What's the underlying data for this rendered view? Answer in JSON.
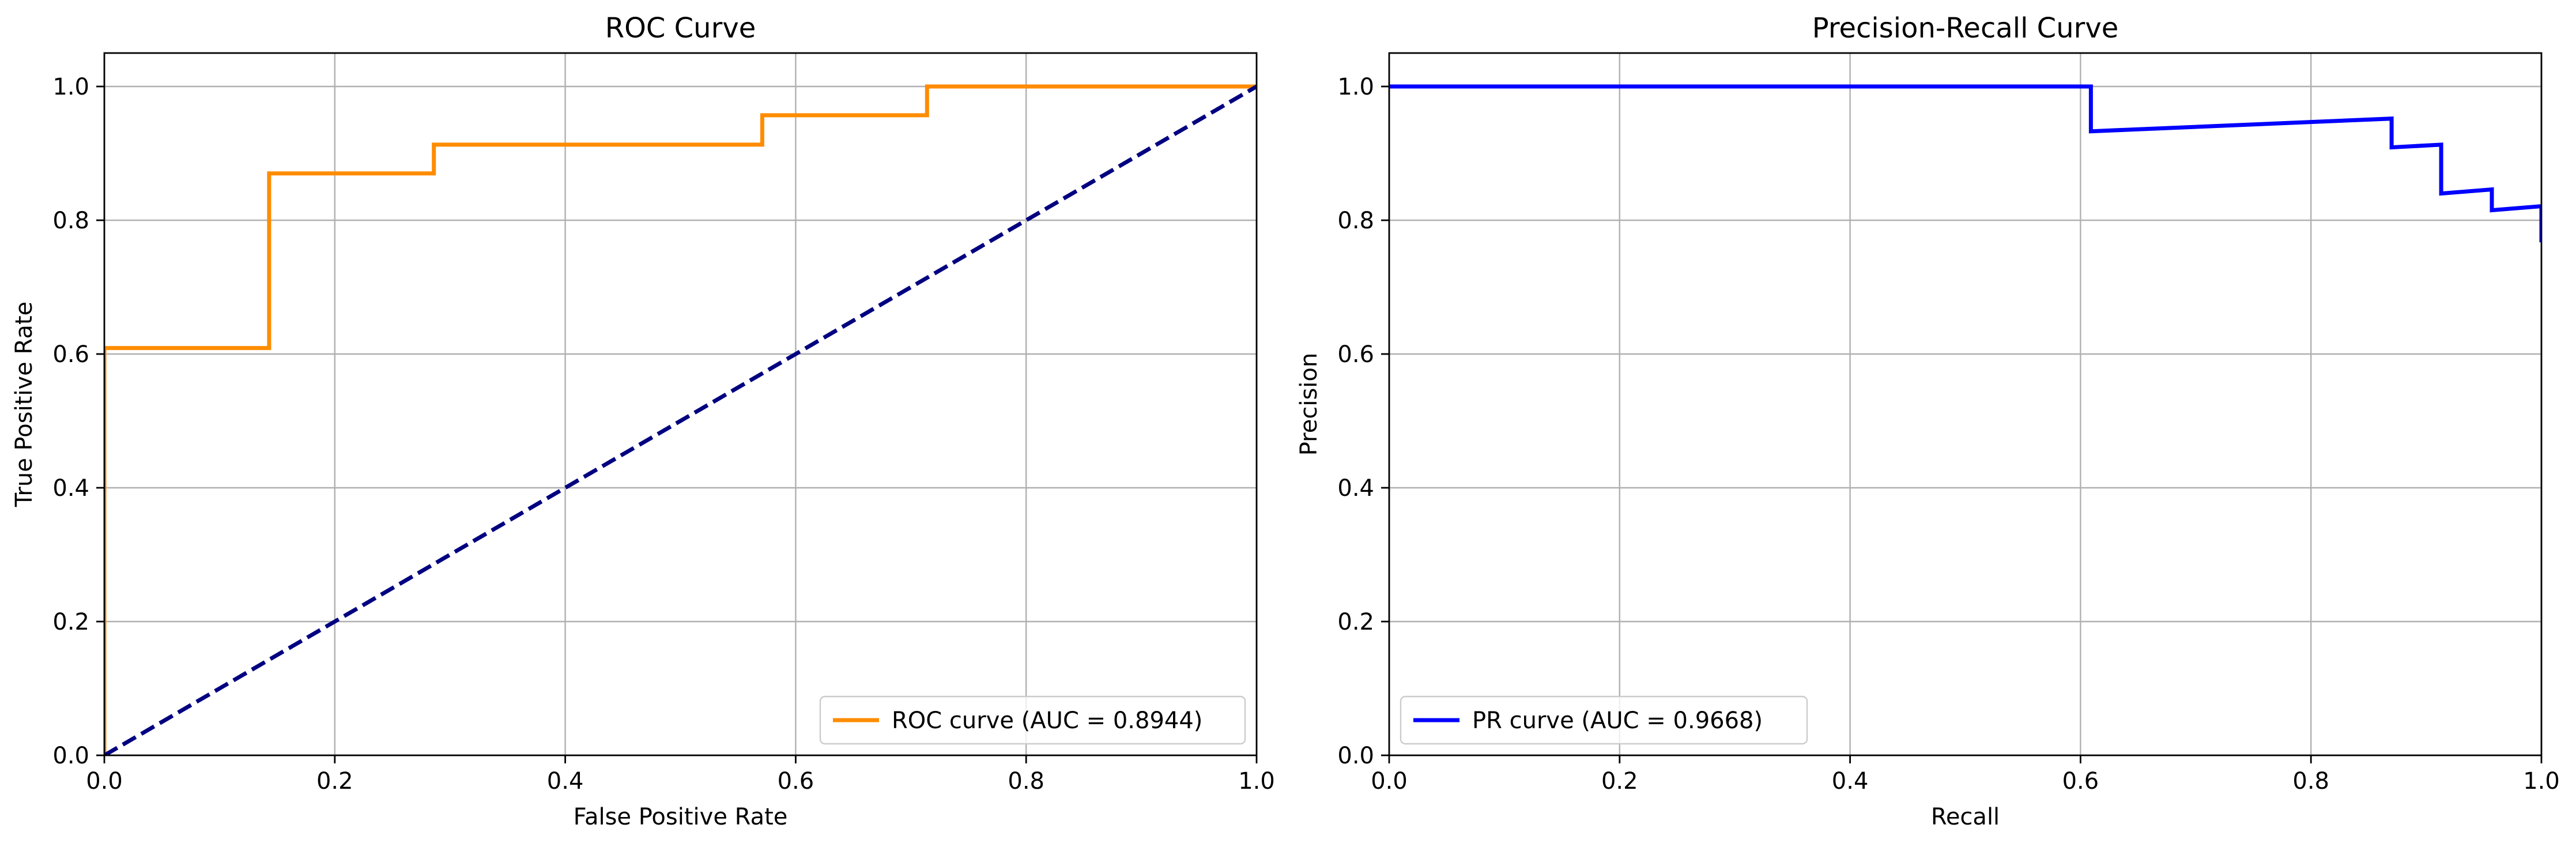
{
  "chart_data": [
    {
      "type": "line",
      "title": "ROC Curve",
      "xlabel": "False Positive Rate",
      "ylabel": "True Positive Rate",
      "xlim": [
        0,
        1
      ],
      "ylim": [
        0,
        1.05
      ],
      "grid": true,
      "legend_position": "lower-right",
      "x_ticks": [
        "0.0",
        "0.2",
        "0.4",
        "0.6",
        "0.8",
        "1.0"
      ],
      "y_ticks": [
        "0.0",
        "0.2",
        "0.4",
        "0.6",
        "0.8",
        "1.0"
      ],
      "series": [
        {
          "name": "ROC curve (AUC = 0.8944)",
          "color": "#ff8c00",
          "style": "solid",
          "x": [
            0,
            0,
            0.143,
            0.143,
            0.286,
            0.286,
            0.571,
            0.571,
            0.714,
            0.714,
            1.0
          ],
          "y": [
            0,
            0.609,
            0.609,
            0.87,
            0.87,
            0.913,
            0.913,
            0.957,
            0.957,
            1.0,
            1.0
          ]
        },
        {
          "color": "#000080",
          "style": "dashed",
          "x": [
            0,
            1
          ],
          "y": [
            0,
            1
          ]
        }
      ]
    },
    {
      "type": "line",
      "title": "Precision-Recall Curve",
      "xlabel": "Recall",
      "ylabel": "Precision",
      "xlim": [
        0,
        1
      ],
      "ylim": [
        0,
        1.05
      ],
      "grid": true,
      "legend_position": "lower-left",
      "x_ticks": [
        "0.0",
        "0.2",
        "0.4",
        "0.6",
        "0.8",
        "1.0"
      ],
      "y_ticks": [
        "0.0",
        "0.2",
        "0.4",
        "0.6",
        "0.8",
        "1.0"
      ],
      "series": [
        {
          "name": "PR curve (AUC = 0.9668)",
          "color": "#0000ff",
          "style": "solid",
          "x": [
            0,
            0.609,
            0.609,
            0.87,
            0.87,
            0.913,
            0.913,
            0.957,
            0.957,
            1.0,
            1.0
          ],
          "y": [
            1.0,
            1.0,
            0.933,
            0.952,
            0.909,
            0.913,
            0.84,
            0.846,
            0.815,
            0.821,
            0.767
          ]
        }
      ]
    }
  ]
}
